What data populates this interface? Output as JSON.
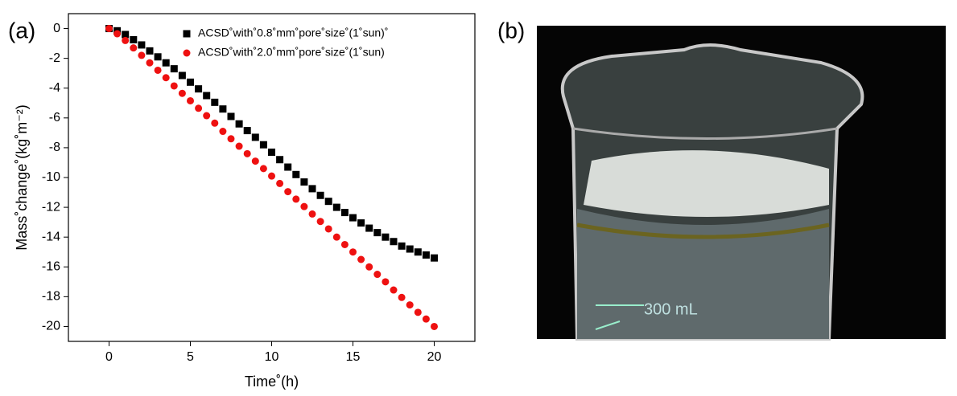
{
  "panels": [
    "(a)",
    "(b)"
  ],
  "chart_data": {
    "type": "scatter",
    "xlabel": "Time˚(h)",
    "ylabel": "Mass˚change˚(kg˚m⁻²)",
    "x": [
      0,
      0.5,
      1,
      1.5,
      2,
      2.5,
      3,
      3.5,
      4,
      4.5,
      5,
      5.5,
      6,
      6.5,
      7,
      7.5,
      8,
      8.5,
      9,
      9.5,
      10,
      10.5,
      11,
      11.5,
      12,
      12.5,
      13,
      13.5,
      14,
      14.5,
      15,
      15.5,
      16,
      16.5,
      17,
      17.5,
      18,
      18.5,
      19,
      19.5,
      20
    ],
    "series": [
      {
        "name": "ACSD˚with˚0.8˚mm˚pore˚size˚(1˚sun)˚",
        "color": "#000000",
        "marker": "square",
        "values": [
          0,
          -0.15,
          -0.4,
          -0.75,
          -1.1,
          -1.5,
          -1.9,
          -2.3,
          -2.7,
          -3.15,
          -3.6,
          -4.05,
          -4.5,
          -4.95,
          -5.4,
          -5.9,
          -6.4,
          -6.85,
          -7.3,
          -7.8,
          -8.3,
          -8.8,
          -9.3,
          -9.8,
          -10.3,
          -10.75,
          -11.2,
          -11.6,
          -12.0,
          -12.35,
          -12.7,
          -13.05,
          -13.4,
          -13.7,
          -14.0,
          -14.3,
          -14.6,
          -14.8,
          -15.0,
          -15.2,
          -15.4
        ]
      },
      {
        "name": "ACSD˚with˚2.0˚mm˚pore˚size˚(1˚sun)",
        "color": "#ee1111",
        "marker": "circle",
        "values": [
          0,
          -0.35,
          -0.8,
          -1.3,
          -1.8,
          -2.3,
          -2.8,
          -3.3,
          -3.85,
          -4.35,
          -4.85,
          -5.35,
          -5.85,
          -6.35,
          -6.9,
          -7.4,
          -7.9,
          -8.4,
          -8.9,
          -9.4,
          -9.9,
          -10.4,
          -10.95,
          -11.45,
          -11.95,
          -12.45,
          -12.95,
          -13.45,
          -14.0,
          -14.5,
          -15.0,
          -15.5,
          -16.0,
          -16.5,
          -17.0,
          -17.55,
          -18.05,
          -18.55,
          -19.05,
          -19.5,
          -20.0
        ]
      }
    ],
    "xlim": [
      -2.5,
      22.5
    ],
    "xticks": [
      0,
      5,
      10,
      15,
      20
    ],
    "ylim": [
      -21,
      1
    ],
    "yticks": [
      0,
      -2,
      -4,
      -6,
      -8,
      -10,
      -12,
      -14,
      -16,
      -18,
      -20
    ],
    "legend": "top-right"
  }
}
